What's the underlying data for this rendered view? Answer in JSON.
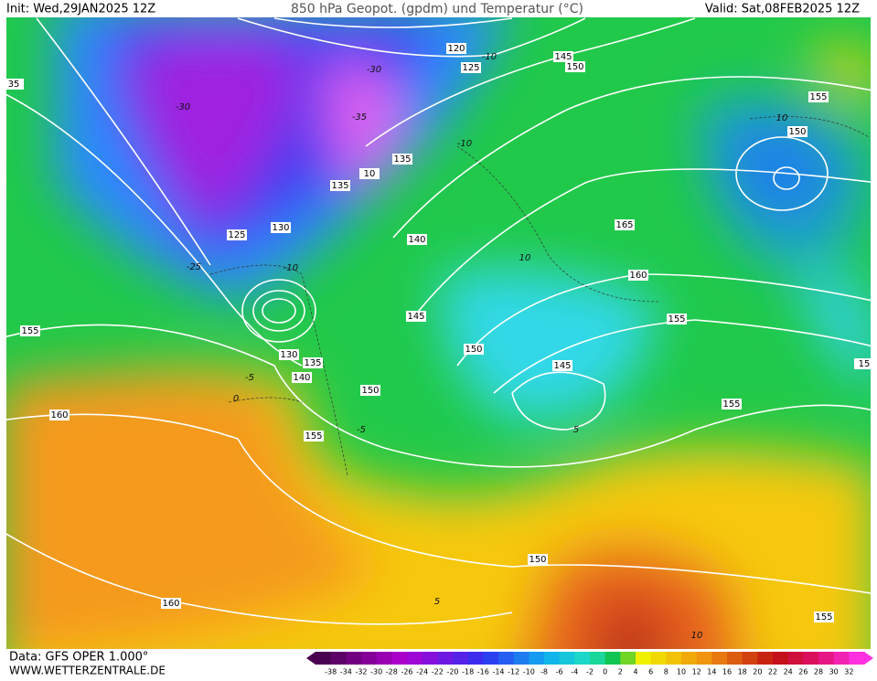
{
  "header": {
    "init": "Init: Wed,29JAN2025 12Z",
    "title": "850 hPa Geopot. (gpdm) und Temperatur (°C)",
    "valid": "Valid: Sat,08FEB2025 12Z"
  },
  "footer": {
    "source": "Data: GFS OPER 1.000°",
    "website": "WWW.WETTERZENTRALE.DE"
  },
  "colorbar": {
    "labels": [
      -38,
      -34,
      -32,
      -30,
      -28,
      -26,
      -24,
      -22,
      -20,
      -18,
      -16,
      -14,
      -12,
      -10,
      -8,
      -6,
      -4,
      -2,
      0,
      2,
      4,
      6,
      8,
      10,
      12,
      14,
      16,
      18,
      20,
      22,
      24,
      26,
      28,
      30,
      32
    ]
  },
  "map": {
    "geopotential_labels": [
      120,
      125,
      145,
      150,
      155,
      150,
      35,
      135,
      135,
      130,
      125,
      140,
      165,
      160,
      155,
      145,
      150,
      145,
      155,
      135,
      140,
      150,
      155,
      15,
      160,
      155,
      150,
      160,
      155,
      130,
      10
    ],
    "temperature_labels": [
      -30,
      -35,
      -30,
      -25,
      -10,
      -10,
      10,
      10,
      -5,
      0,
      -5,
      5,
      10,
      -10,
      5
    ]
  }
}
